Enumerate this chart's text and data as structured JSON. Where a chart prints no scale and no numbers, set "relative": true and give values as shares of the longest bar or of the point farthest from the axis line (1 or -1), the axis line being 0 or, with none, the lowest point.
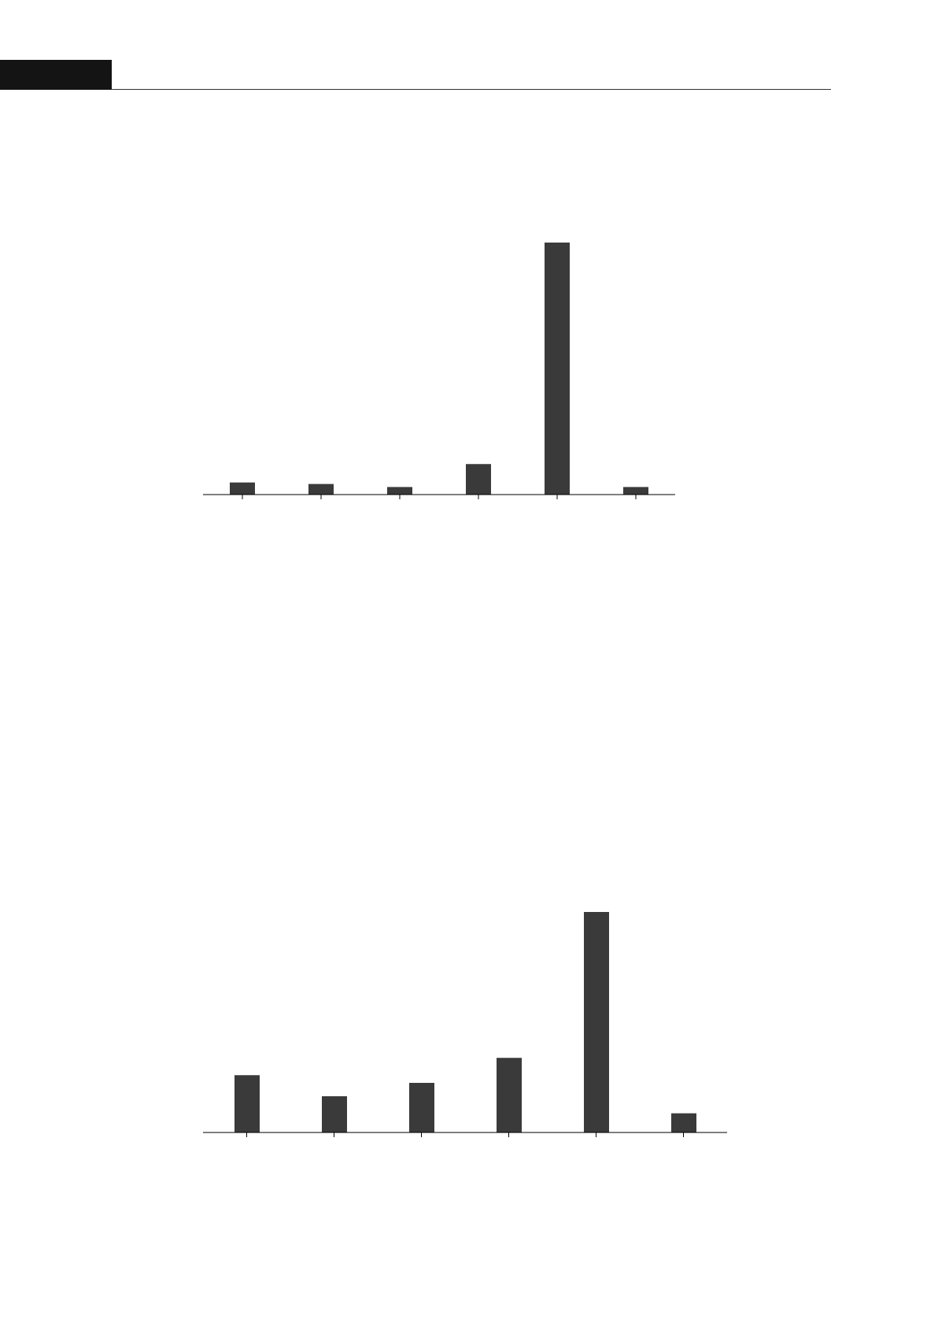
{
  "chart_data": [
    {
      "type": "bar",
      "relative": true,
      "categories": [
        null,
        null,
        null,
        null,
        null,
        null
      ],
      "values": [
        0.048,
        0.042,
        0.03,
        0.121,
        1,
        0.03
      ],
      "color": "#3a3a3a"
    },
    {
      "type": "bar",
      "relative": true,
      "categories": [
        null,
        null,
        null,
        null,
        null,
        null
      ],
      "values": [
        0.26,
        0.164,
        0.225,
        0.338,
        1,
        0.087
      ],
      "color": "#3a3a3a"
    }
  ]
}
